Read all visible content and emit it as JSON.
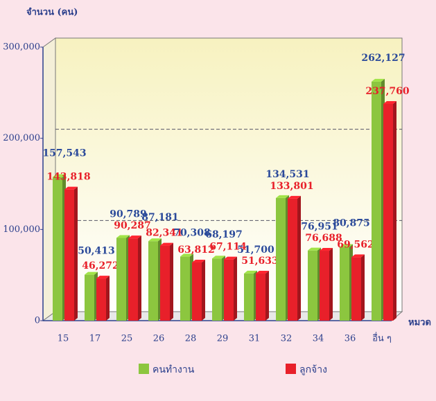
{
  "chart_data": {
    "type": "bar3d",
    "y_label": "จำนวน (คน)",
    "x_label": "หมวด",
    "categories": [
      "15",
      "17",
      "25",
      "26",
      "28",
      "29",
      "31",
      "32",
      "34",
      "36",
      "อื่น ๆ"
    ],
    "series": [
      {
        "name": "คนทำงาน",
        "color": "#8cc63f",
        "label_color": "#2b4a9a",
        "values": [
          157543,
          50413,
          90789,
          87181,
          70308,
          68197,
          51700,
          134531,
          76951,
          80875,
          262127
        ],
        "value_labels": [
          "157,543",
          "50,413",
          "90,789",
          "87,181",
          "70,308",
          "68,197",
          "51,700",
          "134,531",
          "76,951",
          "80,875",
          "262,127"
        ]
      },
      {
        "name": "ลูกจ้าง",
        "color": "#e8202a",
        "label_color": "#e8202a",
        "values": [
          143818,
          46272,
          90287,
          82341,
          63812,
          67114,
          51633,
          133801,
          76688,
          69562,
          237760
        ],
        "value_labels": [
          "143,818",
          "46,272",
          "90,287",
          "82,341",
          "63,812",
          "67,114",
          "51,633",
          "133,801",
          "76,688",
          "69,562",
          "237,760"
        ]
      }
    ],
    "ylim": [
      0,
      300000
    ],
    "yticks": [
      0,
      {
        "value": 100000,
        "label": "100,000"
      },
      {
        "value": 200000,
        "label": "200,000"
      },
      {
        "value": 300000,
        "label": "300,000"
      }
    ],
    "grid": true
  }
}
